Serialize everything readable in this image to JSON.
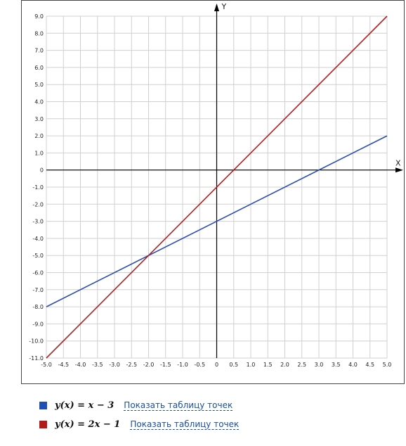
{
  "chart_data": {
    "type": "line",
    "x_axis_name": "X",
    "y_axis_name": "Y",
    "xlim": [
      -5.0,
      5.0
    ],
    "ylim": [
      -11.0,
      9.0
    ],
    "x_ticks": [
      "-5.0",
      "-4.5",
      "-4.0",
      "-3.5",
      "-3.0",
      "-2.5",
      "-2.0",
      "-1.5",
      "-1.0",
      "-0.5",
      "0",
      "0.5",
      "1.0",
      "1.5",
      "2.0",
      "2.5",
      "3.0",
      "3.5",
      "4.0",
      "4.5",
      "5.0"
    ],
    "y_ticks": [
      "-11.0",
      "-10.0",
      "-9.0",
      "-8.0",
      "-7.0",
      "-6.0",
      "-5.0",
      "-4.0",
      "-3.0",
      "-2.0",
      "-1.0",
      "0",
      "1.0",
      "2.0",
      "3.0",
      "4.0",
      "5.0",
      "6.0",
      "7.0",
      "8.0",
      "9.0"
    ],
    "grid": true,
    "series": [
      {
        "name": "y(x) = x − 3",
        "color": "#2b4ea8",
        "x": [
          -5.0,
          5.0
        ],
        "y": [
          -8.0,
          2.0
        ]
      },
      {
        "name": "y(x) = 2x − 1",
        "color": "#b02020",
        "x": [
          -5.0,
          5.0
        ],
        "y": [
          -11.0,
          9.0
        ]
      }
    ]
  },
  "legend": [
    {
      "formula": "y(x) = x − 3",
      "color": "#1f4fb5",
      "link": "Показать таблицу точек"
    },
    {
      "formula": "y(x) = 2x − 1",
      "color": "#b21a1a",
      "link": "Показать таблицу точек"
    }
  ]
}
